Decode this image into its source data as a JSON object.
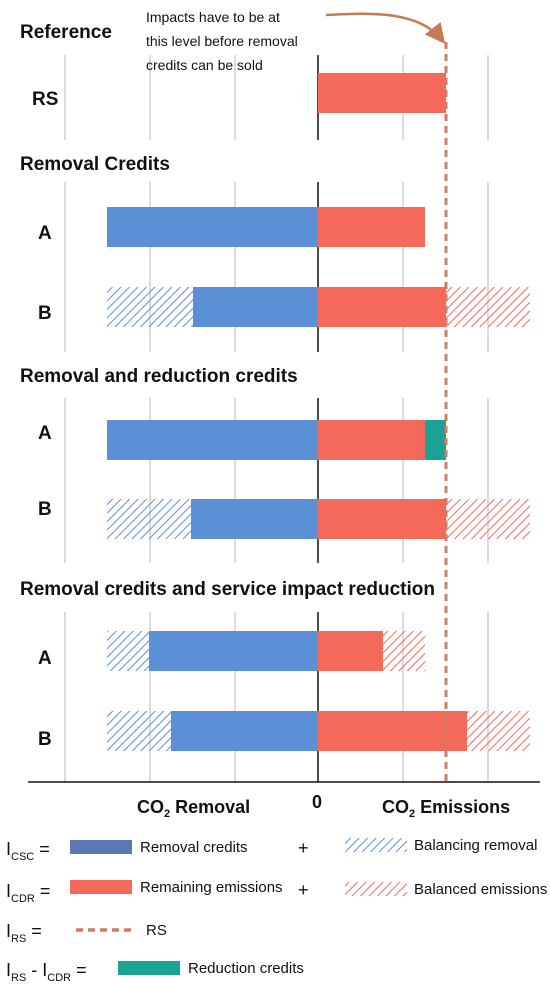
{
  "annotation": {
    "line1": "Impacts have to be at",
    "line2": "this level before removal",
    "line3": "credits can be sold"
  },
  "colors": {
    "removal": "#5b8fd6",
    "emission": "#f5695a",
    "reduction": "#1aa394",
    "rs_line": "#d07a62",
    "grid": "#c8c8c8",
    "arrow": "#c57a52"
  },
  "sections": {
    "reference": {
      "title": "Reference",
      "rs_label": "RS"
    },
    "removal_credits": {
      "title": "Removal Credits",
      "a_label": "A",
      "b_label": "B"
    },
    "removal_reduction": {
      "title": "Removal and reduction credits",
      "a_label": "A",
      "b_label": "B"
    },
    "service_reduction": {
      "title": "Removal credits and service impact reduction",
      "a_label": "A",
      "b_label": "B"
    }
  },
  "axis": {
    "removal_label": "CO",
    "removal_sub": "2",
    "removal_rest": " Removal",
    "zero": "0",
    "emissions_label": "CO",
    "emissions_sub": "2",
    "emissions_rest": " Emissions"
  },
  "legend": {
    "csc_lhs": "I",
    "csc_sub": "CSC",
    "csc_eq": " =",
    "csc_text": "Removal credits",
    "plus1": "+",
    "balancing_removal": "Balancing removal",
    "cdr_lhs": "I",
    "cdr_sub": "CDR",
    "cdr_eq": " =",
    "cdr_text": "Remaining emissions",
    "plus2": "+",
    "balanced_emissions": "Balanced emissions",
    "rs_lhs": "I",
    "rs_sub": "RS",
    "rs_eq": " =",
    "rs_text": "RS",
    "diff_lhs1": "I",
    "diff_sub1": "RS",
    "diff_minus": " - I",
    "diff_sub2": "CDR",
    "diff_eq": " =",
    "diff_text": "Reduction credits"
  }
}
